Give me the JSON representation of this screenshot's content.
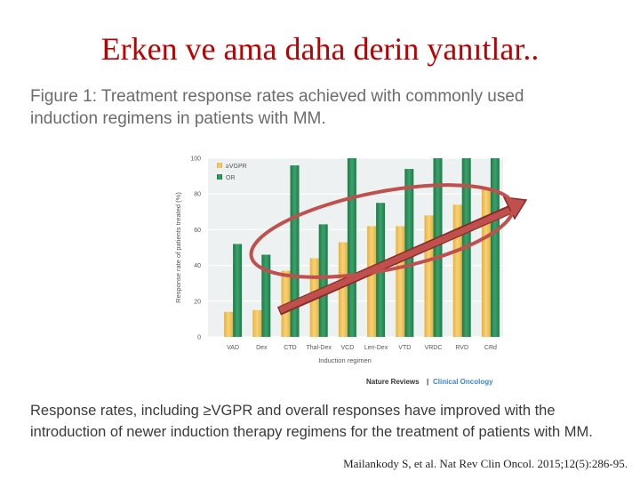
{
  "slide": {
    "title": "Erken ve ama daha derin yanıtlar..",
    "figure_caption_line1": "Figure 1: Treatment response rates achieved with commonly used",
    "figure_caption_line2": "induction regimens in patients with MM.",
    "bottom_line1": "Response rates, including ≥VGPR and overall responses have improved with the",
    "bottom_line2": "introduction of newer induction therapy regimens for the treatment of patients with MM.",
    "citation": "Mailankody S, et al. Nat Rev Clin Oncol. 2015;12(5):286-95.",
    "source_brand": "Nature Reviews",
    "source_separator": "|",
    "source_journal": "Clinical Oncology"
  },
  "colors": {
    "title": "#c00000",
    "vgpr": "#f2c14e",
    "or": "#2e8b57",
    "arrow": "#c0504d",
    "ellipse": "#c0504d"
  },
  "chart_data": {
    "type": "bar",
    "xlabel": "Induction regimen",
    "ylabel": "Response rate of patients treated (%)",
    "ylim": [
      0,
      100
    ],
    "yticks": [
      0,
      20,
      40,
      60,
      80,
      100
    ],
    "grid": true,
    "legend_position": "top-left",
    "categories": [
      "VAD",
      "Dex",
      "CTD",
      "Thal-Dex",
      "VCD",
      "Len-Dex",
      "VTD",
      "VRDC",
      "RVD",
      "CRd"
    ],
    "series": [
      {
        "name": "≥VGPR",
        "values": [
          14,
          15,
          37,
          44,
          53,
          62,
          62,
          68,
          74,
          83
        ]
      },
      {
        "name": "OR",
        "values": [
          52,
          46,
          96,
          63,
          100,
          75,
          94,
          100,
          100,
          100
        ]
      }
    ]
  }
}
